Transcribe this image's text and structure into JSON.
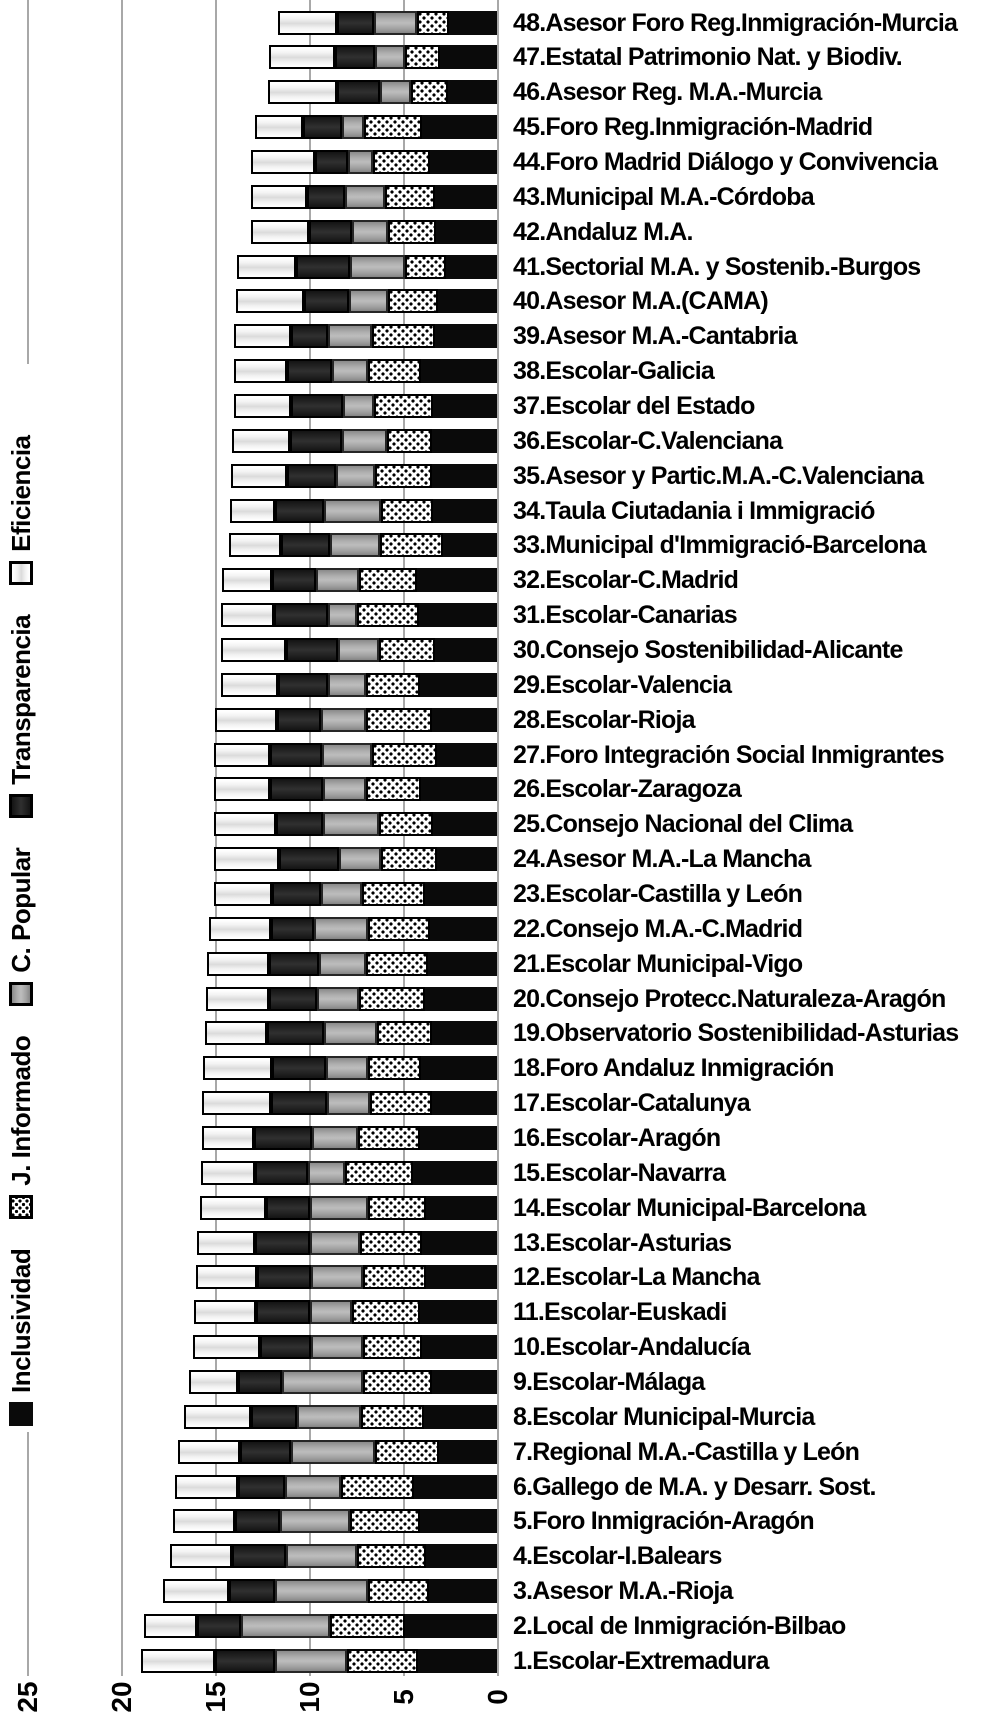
{
  "chart_data": {
    "type": "bar",
    "stacked": true,
    "orientation": "rotated-90-ccw stacked column chart (bars grow right-to-left, baseline 0 on right)",
    "title": "",
    "value_axis": {
      "min": 0,
      "max": 25,
      "ticks": [
        25,
        20,
        15,
        10,
        5,
        0
      ],
      "tick_labels": [
        "25",
        "20",
        "15",
        "10",
        "5",
        "0"
      ],
      "tick_label_rotation": "rotated 90deg ccw",
      "gridlines": true,
      "gridline_color": "#a8a8a8"
    },
    "legend_position": "left edge, rotated 90deg ccw, reads bottom-to-top",
    "categories": [
      "48.Asesor Foro Reg.Inmigración-Murcia",
      "47.Estatal Patrimonio Nat. y Biodiv.",
      "46.Asesor Reg. M.A.-Murcia",
      "45.Foro Reg.Inmigración-Madrid",
      "44.Foro Madrid Diálogo y Convivencia",
      "43.Municipal M.A.-Córdoba",
      "42.Andaluz M.A.",
      "41.Sectorial M.A. y Sostenib.-Burgos",
      "40.Asesor M.A.(CAMA)",
      "39.Asesor M.A.-Cantabria",
      "38.Escolar-Galicia",
      "37.Escolar del Estado",
      "36.Escolar-C.Valenciana",
      "35.Asesor y Partic.M.A.-C.Valenciana",
      "34.Taula Ciutadania i Immigració",
      "33.Municipal d'Immigració-Barcelona",
      "32.Escolar-C.Madrid",
      "31.Escolar-Canarias",
      "30.Consejo Sostenibilidad-Alicante",
      "29.Escolar-Valencia",
      "28.Escolar-Rioja",
      "27.Foro Integración Social Inmigrantes",
      "26.Escolar-Zaragoza",
      "25.Consejo Nacional del Clima",
      "24.Asesor M.A.-La Mancha",
      "23.Escolar-Castilla y León",
      "22.Consejo M.A.-C.Madrid",
      "21.Escolar Municipal-Vigo",
      "20.Consejo Protecc.Naturaleza-Aragón",
      "19.Observatorio Sostenibilidad-Asturias",
      "18.Foro Andaluz Inmigración",
      "17.Escolar-Catalunya",
      "16.Escolar-Aragón",
      "15.Escolar-Navarra",
      "14.Escolar Municipal-Barcelona",
      "13.Escolar-Asturias",
      "12.Escolar-La Mancha",
      "11.Escolar-Euskadi",
      "10.Escolar-Andalucía",
      "9.Escolar-Málaga",
      "8.Escolar Municipal-Murcia",
      "7.Regional M.A.-Castilla y León",
      "6.Gallego de M.A. y Desarr. Sost.",
      "5.Foro Inmigración-Aragón",
      "4.Escolar-I.Balears",
      "3.Asesor M.A.-Rioja",
      "2.Local de Inmigración-Bilbao",
      "1.Escolar-Extremadura"
    ],
    "series": [
      {
        "name": "Inclusividad",
        "key": "incl",
        "swatch": "solid-black",
        "color": "#0a0a0a",
        "values": [
          2.6,
          3.05,
          2.65,
          4.0,
          3.6,
          3.3,
          3.25,
          2.75,
          3.15,
          3.3,
          4.05,
          3.45,
          3.5,
          3.5,
          3.45,
          2.9,
          4.3,
          4.2,
          3.3,
          4.1,
          3.5,
          3.2,
          4.05,
          3.45,
          3.2,
          3.85,
          3.6,
          3.7,
          3.85,
          3.5,
          4.05,
          3.5,
          4.1,
          4.5,
          3.8,
          4.0,
          3.8,
          4.1,
          4.0,
          3.5,
          3.9,
          3.1,
          4.45,
          4.15,
          3.8,
          3.65,
          4.95,
          4.25
        ]
      },
      {
        "name": "J. Informado",
        "key": "jinf",
        "swatch": "black-dots-on-white",
        "color": "#ffffff",
        "dot_color": "#000000",
        "values": [
          1.7,
          1.85,
          1.95,
          3.1,
          3.05,
          2.7,
          2.6,
          2.2,
          2.7,
          3.4,
          2.85,
          3.1,
          2.4,
          3.0,
          2.75,
          3.35,
          3.1,
          3.3,
          3.0,
          2.9,
          3.5,
          3.5,
          2.95,
          2.85,
          3.0,
          3.35,
          3.3,
          3.3,
          3.55,
          2.9,
          2.85,
          3.3,
          3.3,
          3.6,
          3.1,
          3.3,
          3.35,
          3.65,
          3.15,
          3.65,
          3.35,
          3.4,
          3.9,
          3.7,
          3.7,
          3.25,
          3.95,
          3.75
        ]
      },
      {
        "name": "C. Popular",
        "key": "cpop",
        "swatch": "gray-bevel",
        "color": "#a8a8a8",
        "values": [
          2.3,
          1.6,
          1.65,
          1.2,
          1.3,
          2.1,
          1.9,
          2.9,
          2.05,
          2.35,
          1.9,
          1.7,
          2.4,
          2.1,
          3.05,
          2.65,
          2.25,
          1.5,
          2.2,
          2.0,
          2.4,
          2.65,
          2.3,
          3.0,
          2.25,
          2.2,
          2.85,
          2.5,
          2.2,
          2.85,
          2.25,
          2.3,
          2.5,
          2.0,
          3.1,
          2.7,
          2.8,
          2.25,
          2.8,
          4.35,
          3.4,
          4.5,
          2.95,
          3.75,
          3.75,
          4.95,
          4.75,
          3.85
        ]
      },
      {
        "name": "Transparencia",
        "key": "transp",
        "swatch": "dark-gray",
        "color": "#1f1f1f",
        "values": [
          1.95,
          2.15,
          2.3,
          2.05,
          1.75,
          2.05,
          2.3,
          2.9,
          2.4,
          1.95,
          2.4,
          2.75,
          2.75,
          2.6,
          2.6,
          2.65,
          2.35,
          2.9,
          2.75,
          2.7,
          2.35,
          2.75,
          2.8,
          2.5,
          3.2,
          2.6,
          2.3,
          2.65,
          2.55,
          3.0,
          2.85,
          2.95,
          3.05,
          2.8,
          2.3,
          2.9,
          2.85,
          2.85,
          2.7,
          2.3,
          2.45,
          2.7,
          2.5,
          2.4,
          2.9,
          2.45,
          2.35,
          3.2
        ]
      },
      {
        "name": "Eficiencia",
        "key": "efic",
        "swatch": "white-outline",
        "color": "#f2f2f2",
        "values": [
          3.15,
          3.5,
          3.65,
          2.55,
          3.4,
          3.0,
          3.1,
          3.1,
          3.65,
          3.05,
          2.85,
          3.05,
          3.1,
          3.0,
          2.4,
          2.75,
          2.65,
          2.8,
          3.45,
          3.0,
          3.3,
          3.0,
          3.0,
          3.3,
          3.45,
          3.1,
          3.3,
          3.3,
          3.35,
          3.3,
          3.7,
          3.7,
          2.8,
          2.9,
          3.55,
          3.1,
          3.25,
          3.3,
          3.55,
          2.65,
          3.6,
          3.3,
          3.35,
          3.3,
          3.3,
          3.5,
          2.8,
          3.95
        ]
      }
    ]
  },
  "colors": {
    "background": "#ffffff",
    "text": "#000000",
    "gridline": "#a8a8a8"
  }
}
